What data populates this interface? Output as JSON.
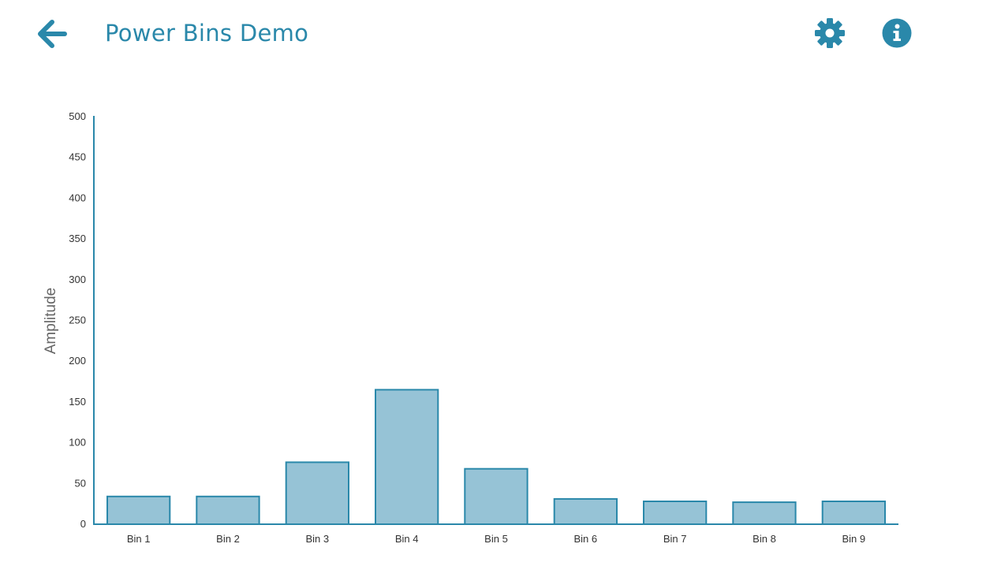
{
  "header": {
    "title": "Power Bins Demo",
    "back_icon": "arrow-left-icon",
    "settings_icon": "gear-icon",
    "info_icon": "info-icon"
  },
  "colors": {
    "accent": "#2a88aa",
    "bar_fill": "#96c3d6",
    "bar_stroke": "#2a88aa",
    "axis": "#2a88aa",
    "tick_text": "#333333",
    "axis_label": "#666666"
  },
  "chart_data": {
    "type": "bar",
    "categories": [
      "Bin 1",
      "Bin 2",
      "Bin 3",
      "Bin 4",
      "Bin 5",
      "Bin 6",
      "Bin 7",
      "Bin 8",
      "Bin 9"
    ],
    "values": [
      34,
      34,
      76,
      165,
      68,
      31,
      28,
      27,
      28
    ],
    "title": "",
    "xlabel": "",
    "ylabel": "Amplitude",
    "ylim": [
      0,
      500
    ],
    "yticks": [
      0,
      50,
      100,
      150,
      200,
      250,
      300,
      350,
      400,
      450,
      500
    ],
    "grid": false,
    "legend": "none"
  }
}
